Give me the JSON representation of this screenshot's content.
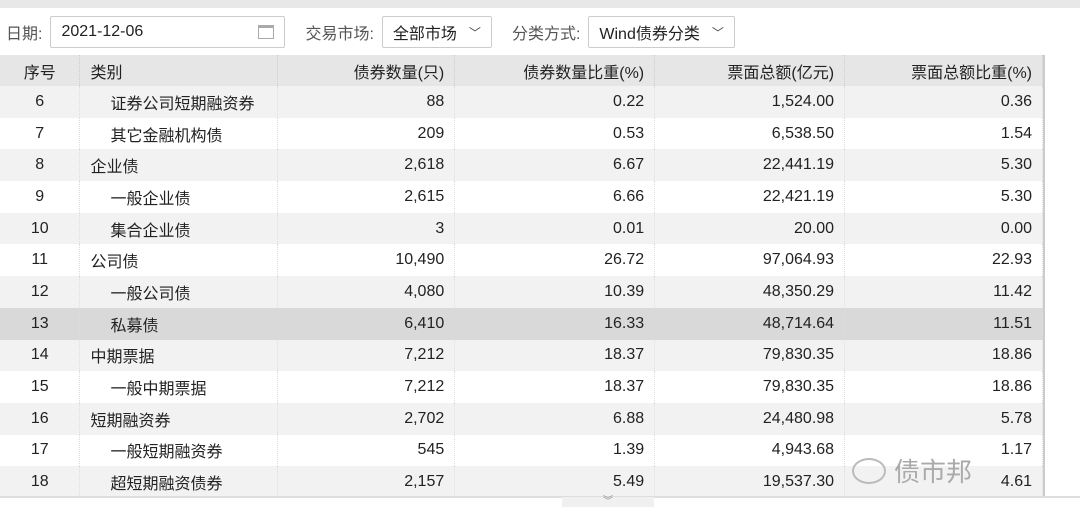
{
  "filters": {
    "date_label": "日期:",
    "date_value": "2021-12-06",
    "market_label": "交易市场:",
    "market_value": "全部市场",
    "class_label": "分类方式:",
    "class_value": "Wind债券分类"
  },
  "table": {
    "headers": [
      "序号",
      "类别",
      "债券数量(只)",
      "债券数量比重(%)",
      "票面总额(亿元)",
      "票面总额比重(%)"
    ],
    "rows": [
      [
        "6",
        "证券公司短期融资券",
        "88",
        "0.22",
        "1,524.00",
        "0.36"
      ],
      [
        "7",
        "其它金融机构债",
        "209",
        "0.53",
        "6,538.50",
        "1.54"
      ],
      [
        "8",
        "企业债",
        "2,618",
        "6.67",
        "22,441.19",
        "5.30"
      ],
      [
        "9",
        "一般企业债",
        "2,615",
        "6.66",
        "22,421.19",
        "5.30"
      ],
      [
        "10",
        "集合企业债",
        "3",
        "0.01",
        "20.00",
        "0.00"
      ],
      [
        "11",
        "公司债",
        "10,490",
        "26.72",
        "97,064.93",
        "22.93"
      ],
      [
        "12",
        "一般公司债",
        "4,080",
        "10.39",
        "48,350.29",
        "11.42"
      ],
      [
        "13",
        "私募债",
        "6,410",
        "16.33",
        "48,714.64",
        "11.51"
      ],
      [
        "14",
        "中期票据",
        "7,212",
        "18.37",
        "79,830.35",
        "18.86"
      ],
      [
        "15",
        "一般中期票据",
        "7,212",
        "18.37",
        "79,830.35",
        "18.86"
      ],
      [
        "16",
        "短期融资券",
        "2,702",
        "6.88",
        "24,480.98",
        "5.78"
      ],
      [
        "17",
        "一般短期融资券",
        "545",
        "1.39",
        "4,943.68",
        "1.17"
      ],
      [
        "18",
        "超短期融资债券",
        "2,157",
        "5.49",
        "19,537.30",
        "4.61"
      ]
    ],
    "sub_rows": [
      true,
      true,
      false,
      true,
      true,
      false,
      true,
      true,
      false,
      true,
      false,
      true,
      true
    ],
    "selected_row": "13"
  },
  "watermark": "债市邦"
}
